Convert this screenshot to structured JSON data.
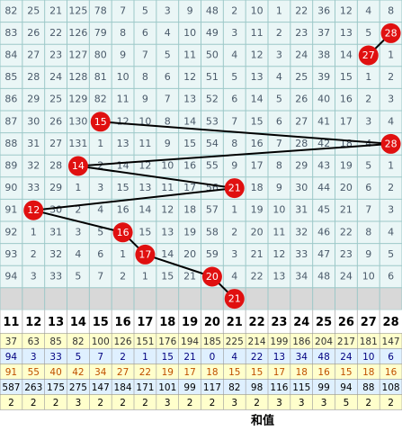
{
  "headers": [
    11,
    12,
    13,
    14,
    15,
    16,
    17,
    18,
    19,
    20,
    21,
    22,
    23,
    24,
    25,
    26,
    27,
    28
  ],
  "rows": [
    [
      82,
      25,
      21,
      125,
      78,
      7,
      5,
      3,
      9,
      48,
      2,
      10,
      1,
      22,
      36,
      12,
      4,
      8
    ],
    [
      83,
      26,
      22,
      126,
      79,
      8,
      6,
      4,
      10,
      49,
      3,
      11,
      2,
      23,
      37,
      13,
      5,
      null
    ],
    [
      84,
      27,
      23,
      127,
      80,
      9,
      7,
      5,
      11,
      50,
      4,
      12,
      3,
      24,
      38,
      14,
      null,
      1
    ],
    [
      85,
      28,
      24,
      128,
      81,
      10,
      8,
      6,
      12,
      51,
      5,
      13,
      4,
      25,
      39,
      15,
      1,
      2
    ],
    [
      86,
      29,
      25,
      129,
      82,
      11,
      9,
      7,
      13,
      52,
      6,
      14,
      5,
      26,
      40,
      16,
      2,
      3
    ],
    [
      87,
      30,
      26,
      130,
      null,
      12,
      10,
      8,
      14,
      53,
      7,
      15,
      6,
      27,
      41,
      17,
      3,
      4
    ],
    [
      88,
      31,
      27,
      131,
      1,
      13,
      11,
      9,
      15,
      54,
      8,
      16,
      7,
      28,
      42,
      18,
      4,
      null
    ],
    [
      89,
      32,
      28,
      null,
      2,
      14,
      12,
      10,
      16,
      55,
      9,
      17,
      8,
      29,
      43,
      19,
      5,
      1
    ],
    [
      90,
      33,
      29,
      1,
      3,
      15,
      13,
      11,
      17,
      56,
      null,
      18,
      9,
      30,
      44,
      20,
      6,
      2
    ],
    [
      91,
      null,
      30,
      2,
      4,
      16,
      14,
      12,
      18,
      57,
      1,
      19,
      10,
      31,
      45,
      21,
      7,
      3
    ],
    [
      92,
      1,
      31,
      3,
      5,
      null,
      15,
      13,
      19,
      58,
      2,
      20,
      11,
      32,
      46,
      22,
      8,
      4
    ],
    [
      93,
      2,
      32,
      4,
      6,
      1,
      null,
      14,
      20,
      59,
      3,
      21,
      12,
      33,
      47,
      23,
      9,
      5
    ],
    [
      94,
      3,
      33,
      5,
      7,
      2,
      1,
      15,
      21,
      null,
      4,
      22,
      13,
      34,
      48,
      24,
      10,
      6
    ],
    [
      null,
      null,
      null,
      null,
      null,
      null,
      null,
      null,
      null,
      null,
      null,
      null,
      null,
      null,
      null,
      null,
      null,
      null
    ]
  ],
  "hits": [
    null,
    28,
    27,
    null,
    null,
    15,
    28,
    14,
    21,
    12,
    16,
    17,
    20,
    21
  ],
  "stats": [
    {
      "bg": "#ffffcc",
      "color": "#333333",
      "values": [
        37,
        63,
        85,
        82,
        100,
        126,
        151,
        176,
        194,
        185,
        225,
        214,
        199,
        186,
        204,
        217,
        181,
        147
      ]
    },
    {
      "bg": "#dff0ff",
      "color": "#000080",
      "values": [
        94,
        3,
        33,
        5,
        7,
        2,
        1,
        15,
        21,
        0,
        4,
        22,
        13,
        34,
        48,
        24,
        10,
        6
      ]
    },
    {
      "bg": "#ffffcc",
      "color": "#c05000",
      "values": [
        91,
        55,
        40,
        42,
        34,
        27,
        22,
        19,
        17,
        18,
        15,
        15,
        17,
        18,
        16,
        15,
        18,
        16
      ]
    },
    {
      "bg": "#dff0ff",
      "color": "#000000",
      "values": [
        587,
        263,
        175,
        275,
        147,
        184,
        171,
        101,
        99,
        117,
        82,
        98,
        116,
        115,
        99,
        94,
        88,
        108
      ]
    },
    {
      "bg": "#ffffcc",
      "color": "#000000",
      "values": [
        2,
        2,
        2,
        3,
        2,
        2,
        2,
        3,
        2,
        2,
        3,
        2,
        3,
        3,
        3,
        5,
        2,
        2
      ]
    }
  ],
  "footer": "和值"
}
